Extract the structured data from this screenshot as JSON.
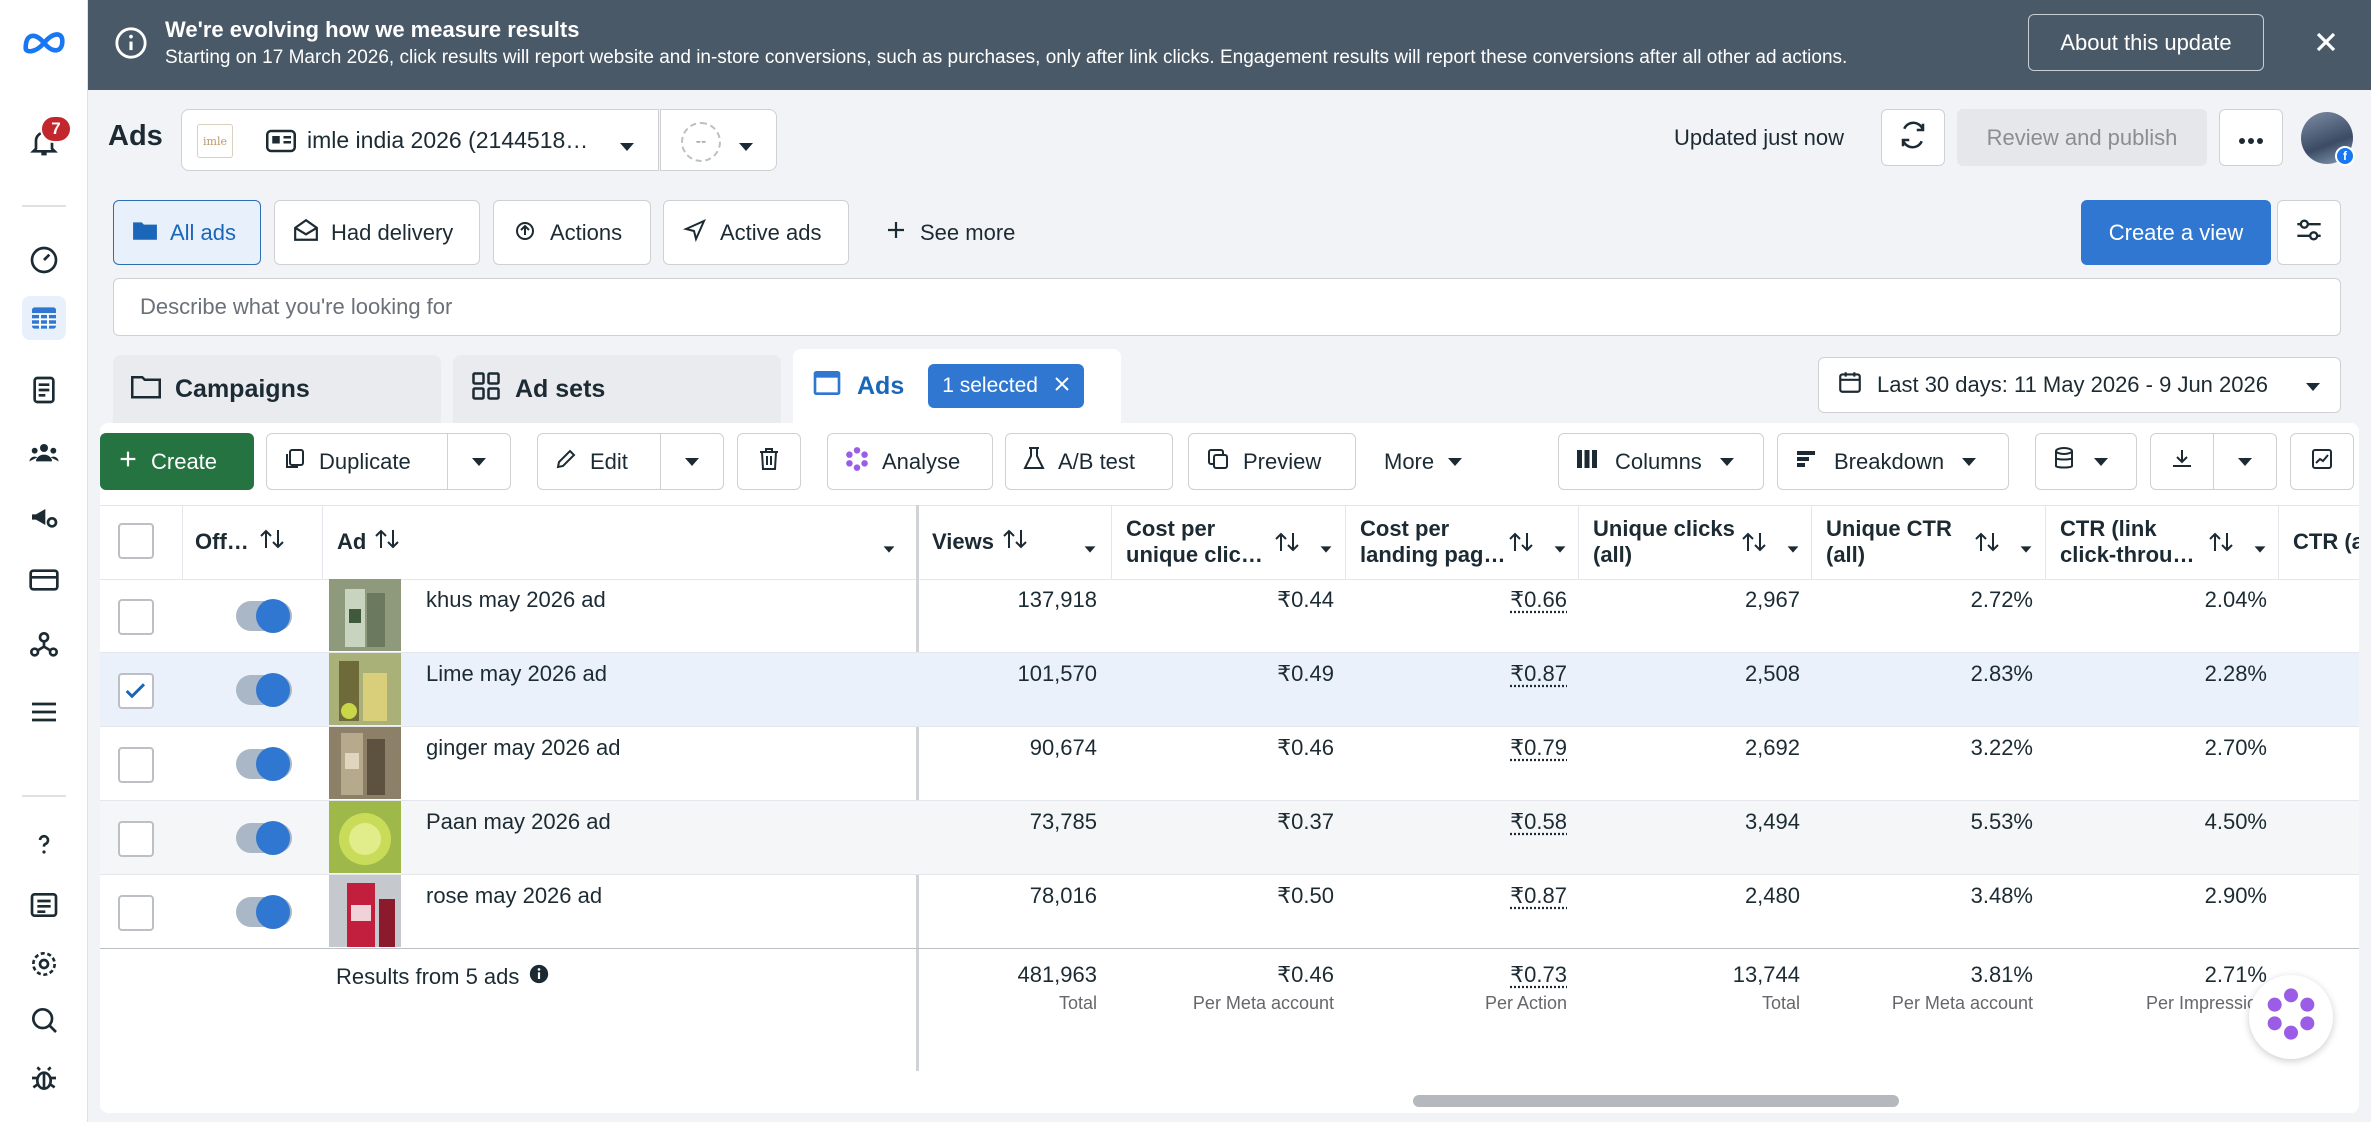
{
  "nav": {
    "notification_count": "7",
    "colors": {
      "accent": "#2f77d0",
      "active_bg": "#e7f0fb"
    }
  },
  "banner": {
    "title": "We're evolving how we measure results",
    "text": "Starting on 17 March 2026, click results will report website and in-store conversions, such as purchases, only after link clicks. Engagement results will report these conversions after all other ad actions.",
    "about_button": "About this update"
  },
  "header": {
    "title": "Ads",
    "account_logo_text": "imle",
    "account_label": "imle india 2026 (2144518…",
    "secondary_selector": "--",
    "updated_text": "Updated just now",
    "review_button": "Review and publish"
  },
  "filters": {
    "all_ads": "All ads",
    "had_delivery": "Had delivery",
    "actions": "Actions",
    "active_ads": "Active ads",
    "see_more": "See more",
    "create_view": "Create a view"
  },
  "search": {
    "placeholder": "Describe what you're looking for"
  },
  "levels": {
    "campaigns": "Campaigns",
    "ad_sets": "Ad sets",
    "ads": "Ads",
    "selected_badge": "1 selected"
  },
  "date_range": "Last 30 days: 11 May 2026 - 9 Jun 2026",
  "toolbar": {
    "create": "Create",
    "duplicate": "Duplicate",
    "edit": "Edit",
    "analyse": "Analyse",
    "ab_test": "A/B test",
    "preview": "Preview",
    "more": "More",
    "columns": "Columns",
    "breakdown": "Breakdown"
  },
  "table": {
    "headers": {
      "off_on": "Off…",
      "ad": "Ad",
      "views": "Views",
      "cost_unique_1": "Cost per",
      "cost_unique_2": "unique clic…",
      "cost_landing_1": "Cost per",
      "cost_landing_2": "landing pag…",
      "unique_clicks_1": "Unique clicks",
      "unique_clicks_2": "(all)",
      "unique_ctr_1": "Unique CTR",
      "unique_ctr_2": "(all)",
      "ctr_link_1": "CTR (link",
      "ctr_link_2": "click-throu…",
      "ctr_all": "CTR (al"
    },
    "rows": [
      {
        "name": "khus may 2026 ad",
        "views": "137,918",
        "cost_unique": "₹0.44",
        "cost_landing": "₹0.66",
        "unique_clicks": "2,967",
        "unique_ctr": "2.72%",
        "ctr_link": "2.04%",
        "checked": false
      },
      {
        "name": "Lime may 2026 ad",
        "views": "101,570",
        "cost_unique": "₹0.49",
        "cost_landing": "₹0.87",
        "unique_clicks": "2,508",
        "unique_ctr": "2.83%",
        "ctr_link": "2.28%",
        "checked": true
      },
      {
        "name": "ginger may 2026 ad",
        "views": "90,674",
        "cost_unique": "₹0.46",
        "cost_landing": "₹0.79",
        "unique_clicks": "2,692",
        "unique_ctr": "3.22%",
        "ctr_link": "2.70%",
        "checked": false
      },
      {
        "name": "Paan may 2026 ad",
        "views": "73,785",
        "cost_unique": "₹0.37",
        "cost_landing": "₹0.58",
        "unique_clicks": "3,494",
        "unique_ctr": "5.53%",
        "ctr_link": "4.50%",
        "checked": false
      },
      {
        "name": "rose may 2026 ad",
        "views": "78,016",
        "cost_unique": "₹0.50",
        "cost_landing": "₹0.87",
        "unique_clicks": "2,480",
        "unique_ctr": "3.48%",
        "ctr_link": "2.90%",
        "checked": false
      }
    ],
    "totals": {
      "label": "Results from 5 ads",
      "views": "481,963",
      "views_sub": "Total",
      "cost_unique": "₹0.46",
      "cost_unique_sub": "Per Meta account",
      "cost_landing": "₹0.73",
      "cost_landing_sub": "Per Action",
      "unique_clicks": "13,744",
      "unique_clicks_sub": "Total",
      "unique_ctr": "3.81%",
      "unique_ctr_sub": "Per Meta account",
      "ctr_link": "2.71%",
      "ctr_link_sub": "Per Impression"
    }
  }
}
